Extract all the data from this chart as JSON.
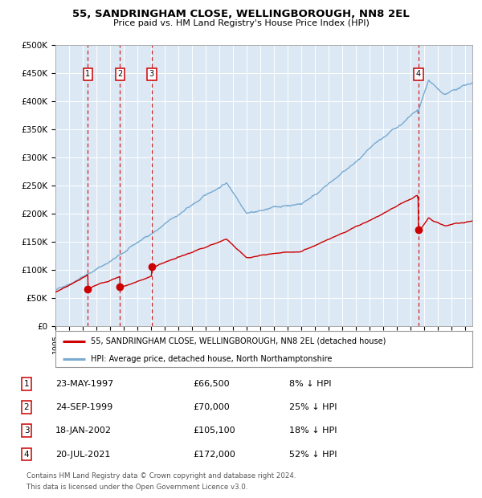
{
  "title": "55, SANDRINGHAM CLOSE, WELLINGBOROUGH, NN8 2EL",
  "subtitle": "Price paid vs. HM Land Registry's House Price Index (HPI)",
  "plot_bg_color": "#dce9f5",
  "transactions": [
    {
      "label": "1",
      "date": "23-MAY-1997",
      "price": 66500,
      "hpi_pct": "8% ↓ HPI",
      "year": 1997.38
    },
    {
      "label": "2",
      "date": "24-SEP-1999",
      "price": 70000,
      "hpi_pct": "25% ↓ HPI",
      "year": 1999.73
    },
    {
      "label": "3",
      "date": "18-JAN-2002",
      "price": 105100,
      "hpi_pct": "18% ↓ HPI",
      "year": 2002.04
    },
    {
      "label": "4",
      "date": "20-JUL-2021",
      "price": 172000,
      "hpi_pct": "52% ↓ HPI",
      "year": 2021.55
    }
  ],
  "legend_line1": "55, SANDRINGHAM CLOSE, WELLINGBOROUGH, NN8 2EL (detached house)",
  "legend_line2": "HPI: Average price, detached house, North Northamptonshire",
  "footer1": "Contains HM Land Registry data © Crown copyright and database right 2024.",
  "footer2": "This data is licensed under the Open Government Licence v3.0.",
  "red_line_color": "#cc0000",
  "blue_line_color": "#7aaad0",
  "dashed_line_color": "#cc0000",
  "box_color": "#cc0000",
  "ylim": [
    0,
    500000
  ],
  "xlim_start": 1995.0,
  "xlim_end": 2025.5,
  "yticks": [
    0,
    50000,
    100000,
    150000,
    200000,
    250000,
    300000,
    350000,
    400000,
    450000,
    500000
  ],
  "ytick_labels": [
    "£0",
    "£50K",
    "£100K",
    "£150K",
    "£200K",
    "£250K",
    "£300K",
    "£350K",
    "£400K",
    "£450K",
    "£500K"
  ]
}
